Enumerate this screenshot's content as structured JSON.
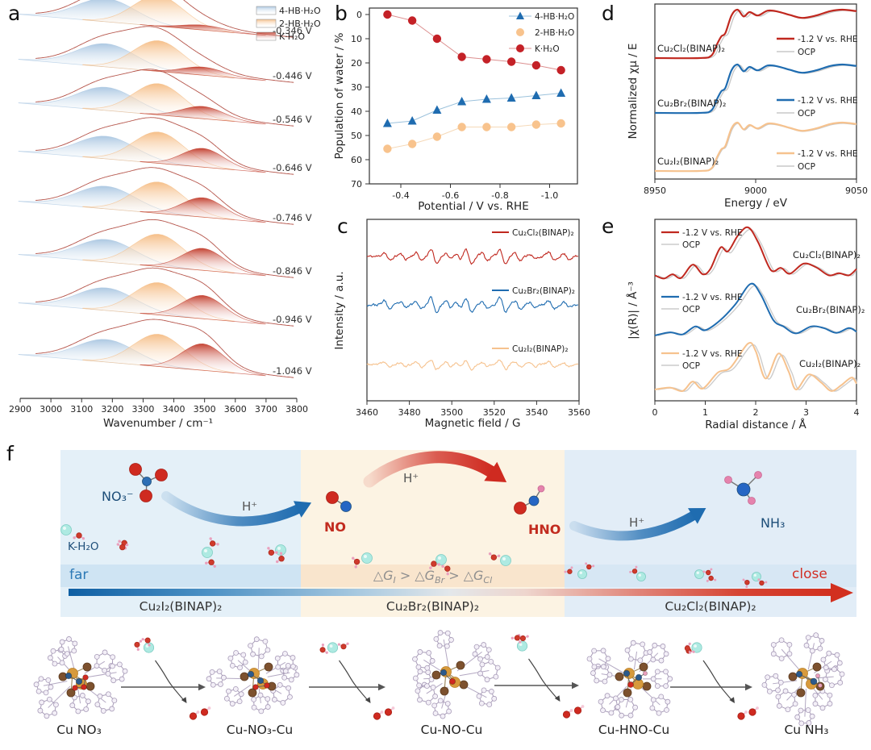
{
  "panels": {
    "a": "a",
    "b": "b",
    "c": "c",
    "d": "d",
    "e": "e",
    "f": "f"
  },
  "chart_data": [
    {
      "id": "a",
      "type": "area",
      "title": "",
      "xlabel": "Wavenumber / cm⁻¹",
      "x_ticks": [
        2900,
        3000,
        3100,
        3200,
        3300,
        3400,
        3500,
        3600,
        3700,
        3800
      ],
      "legend": [
        {
          "label": "4-HB·H₂O",
          "color": "#a9c6e1"
        },
        {
          "label": "2-HB·H₂O",
          "color": "#f5bc83"
        },
        {
          "label": "K·H₂O",
          "color": "#c23b2a"
        }
      ],
      "peak_centers": [
        3180,
        3350,
        3495
      ],
      "peak_sigmas": [
        95,
        82,
        68
      ],
      "rows": [
        {
          "potential": "-0.346 V",
          "amps": [
            0.72,
            0.95,
            0.15
          ]
        },
        {
          "potential": "-0.446 V",
          "amps": [
            0.72,
            0.95,
            0.25
          ]
        },
        {
          "potential": "-0.546 V",
          "amps": [
            0.72,
            0.97,
            0.38
          ]
        },
        {
          "potential": "-0.646 V",
          "amps": [
            0.7,
            0.97,
            0.58
          ]
        },
        {
          "potential": "-0.746 V",
          "amps": [
            0.7,
            0.97,
            0.6
          ]
        },
        {
          "potential": "-0.846 V",
          "amps": [
            0.7,
            1.0,
            0.68
          ]
        },
        {
          "potential": "-0.946 V",
          "amps": [
            0.7,
            1.0,
            0.72
          ]
        },
        {
          "potential": "-1.046 V",
          "amps": [
            0.7,
            1.0,
            0.82
          ]
        }
      ]
    },
    {
      "id": "b",
      "type": "scatter-line",
      "xlabel": "Potential / V vs. RHE",
      "ylabel": "Population of water / %",
      "x": [
        -0.346,
        -0.446,
        -0.546,
        -0.646,
        -0.746,
        -0.846,
        -0.946,
        -1.046
      ],
      "x_ticks": [
        -0.4,
        -0.6,
        -0.8,
        -1.0
      ],
      "x_tick_labels": [
        "-0.4",
        "-0.6",
        "-0.8",
        "-1.0"
      ],
      "y_ticks": [
        0,
        10,
        20,
        30,
        40,
        50,
        60,
        70
      ],
      "ylim": [
        0,
        70
      ],
      "y_inverted": true,
      "legend_position": "top-right",
      "series": [
        {
          "name": "4-HB·H₂O",
          "marker": "triangle",
          "color": "#1f6cb0",
          "line_color": "#9cc2dc",
          "legend_line": true,
          "values": [
            45,
            44,
            39.5,
            36,
            35,
            34.5,
            33.5,
            32.5
          ]
        },
        {
          "name": "2-HB·H₂O",
          "marker": "circle",
          "color": "#f8c38d",
          "line_color": "#f5d9b8",
          "legend_line": false,
          "values": [
            55.5,
            53.5,
            50.5,
            46.5,
            46.5,
            46.5,
            45.5,
            45
          ]
        },
        {
          "name": "K·H₂O",
          "marker": "circle",
          "color": "#c42127",
          "line_color": "#dc9090",
          "legend_line": true,
          "values": [
            0,
            2.5,
            10,
            17.5,
            18.5,
            19.5,
            21,
            23
          ]
        }
      ]
    },
    {
      "id": "c",
      "type": "line",
      "xlabel": "Magnetic field / G",
      "ylabel": "Intensity / a.u.",
      "x_ticks": [
        3460,
        3480,
        3500,
        3520,
        3540,
        3560
      ],
      "x_range": [
        3460,
        3560
      ],
      "traces": [
        {
          "name": "Cu₂Cl₂(BINAP)₂",
          "color": "#c0281f",
          "seed": 11,
          "spike_scale": 1.0
        },
        {
          "name": "Cu₂Br₂(BINAP)₂",
          "color": "#1f6cb0",
          "seed": 23,
          "spike_scale": 1.0
        },
        {
          "name": "Cu₂I₂(BINAP)₂",
          "color": "#f6c28e",
          "seed": 37,
          "spike_scale": 0.8
        }
      ],
      "hyperfine_peaks": [
        {
          "x": 3469.5,
          "a": 0.55
        },
        {
          "x": 3477,
          "a": 0.35
        },
        {
          "x": 3484.5,
          "a": 0.5
        },
        {
          "x": 3491.5,
          "a": 1.0
        },
        {
          "x": 3498.5,
          "a": 0.45
        },
        {
          "x": 3503,
          "a": 0.4
        },
        {
          "x": 3508,
          "a": 1.0
        },
        {
          "x": 3515.5,
          "a": 0.5
        },
        {
          "x": 3524,
          "a": 1.0
        },
        {
          "x": 3531,
          "a": 0.55
        },
        {
          "x": 3538,
          "a": 0.35
        },
        {
          "x": 3547,
          "a": 0.6
        },
        {
          "x": 3554,
          "a": 0.35
        }
      ]
    },
    {
      "id": "d",
      "type": "line",
      "xlabel": "Energy / eV",
      "ylabel": "Normalized χμ / E",
      "x_ticks": [
        8950,
        9000,
        9050
      ],
      "x_range": [
        8950,
        9050
      ],
      "legend": [
        "-1.2 V vs. RHE",
        "OCP"
      ],
      "ocp_color": "#c9c9c9",
      "groups": [
        {
          "name": "Cu₂Cl₂(BINAP)₂",
          "color": "#c0281f",
          "ocp_shift": 1.4
        },
        {
          "name": "Cu₂Br₂(BINAP)₂",
          "color": "#1f6cb0",
          "ocp_shift": 1.2
        },
        {
          "name": "Cu₂I₂(BINAP)₂",
          "color": "#f6c28e",
          "ocp_shift": 0.4
        }
      ],
      "xanes_curve": [
        [
          8950,
          0.0
        ],
        [
          8972,
          0.0
        ],
        [
          8978,
          0.05
        ],
        [
          8981,
          0.3
        ],
        [
          8983,
          0.45
        ],
        [
          8985,
          0.52
        ],
        [
          8988,
          0.88
        ],
        [
          8991,
          1.0
        ],
        [
          8994,
          0.86
        ],
        [
          8997,
          0.95
        ],
        [
          9001,
          0.88
        ],
        [
          9006,
          0.98
        ],
        [
          9011,
          0.96
        ],
        [
          9017,
          0.89
        ],
        [
          9023,
          0.83
        ],
        [
          9030,
          0.88
        ],
        [
          9037,
          0.97
        ],
        [
          9043,
          1.0
        ],
        [
          9050,
          0.97
        ]
      ]
    },
    {
      "id": "e",
      "type": "line",
      "xlabel": "Radial distance / Å",
      "ylabel": "|χ(R)| / Å⁻³",
      "x_ticks": [
        0,
        1,
        2,
        3,
        4
      ],
      "x_range": [
        0,
        4
      ],
      "legend": [
        "-1.2 V vs. RHE",
        "OCP"
      ],
      "ocp_color": "#cccccc",
      "groups": [
        {
          "name": "Cu₂Cl₂(BINAP)₂",
          "color": "#c0281f",
          "curve": [
            [
              0,
              0.1
            ],
            [
              0.18,
              0.04
            ],
            [
              0.35,
              0.12
            ],
            [
              0.52,
              0.05
            ],
            [
              0.75,
              0.3
            ],
            [
              0.95,
              0.12
            ],
            [
              1.1,
              0.22
            ],
            [
              1.3,
              0.62
            ],
            [
              1.45,
              0.55
            ],
            [
              1.65,
              0.85
            ],
            [
              1.85,
              1.0
            ],
            [
              2.05,
              0.72
            ],
            [
              2.3,
              0.2
            ],
            [
              2.5,
              0.24
            ],
            [
              2.68,
              0.13
            ],
            [
              2.95,
              0.32
            ],
            [
              3.2,
              0.25
            ],
            [
              3.45,
              0.1
            ],
            [
              3.65,
              0.14
            ],
            [
              3.85,
              0.1
            ],
            [
              4,
              0.22
            ]
          ]
        },
        {
          "name": "Cu₂Br₂(BINAP)₂",
          "color": "#1f6cb0",
          "curve": [
            [
              0,
              0.03
            ],
            [
              0.3,
              0.09
            ],
            [
              0.55,
              0.05
            ],
            [
              0.8,
              0.2
            ],
            [
              1.0,
              0.13
            ],
            [
              1.3,
              0.32
            ],
            [
              1.6,
              0.62
            ],
            [
              1.9,
              1.0
            ],
            [
              2.1,
              0.8
            ],
            [
              2.35,
              0.32
            ],
            [
              2.55,
              0.2
            ],
            [
              2.8,
              0.07
            ],
            [
              3.1,
              0.2
            ],
            [
              3.35,
              0.17
            ],
            [
              3.6,
              0.08
            ],
            [
              3.85,
              0.17
            ],
            [
              4,
              0.1
            ]
          ]
        },
        {
          "name": "Cu₂I₂(BINAP)₂",
          "color": "#f6c28e",
          "curve": [
            [
              0,
              0.08
            ],
            [
              0.3,
              0.12
            ],
            [
              0.55,
              0.05
            ],
            [
              0.75,
              0.24
            ],
            [
              0.95,
              0.1
            ],
            [
              1.25,
              0.42
            ],
            [
              1.5,
              0.52
            ],
            [
              1.85,
              1.0
            ],
            [
              2.0,
              0.85
            ],
            [
              2.2,
              0.3
            ],
            [
              2.45,
              0.8
            ],
            [
              2.65,
              0.45
            ],
            [
              2.8,
              0.08
            ],
            [
              3.05,
              0.38
            ],
            [
              3.3,
              0.22
            ],
            [
              3.5,
              0.05
            ],
            [
              3.7,
              0.17
            ],
            [
              3.9,
              0.32
            ],
            [
              4,
              0.2
            ]
          ]
        }
      ]
    }
  ],
  "scheme": {
    "species": {
      "no3": "NO₃⁻",
      "no": "NO",
      "hno": "HNO",
      "nh3": "NH₃"
    },
    "h_plus": "H⁺",
    "k_h2o": "K-H₂O",
    "far": "far",
    "close": "close",
    "dg": {
      "t1": "△G",
      "s1": "I",
      "t2": " > △G",
      "s2": "Br",
      "t3": " > △G",
      "s3": "Cl"
    },
    "catalysts": [
      "Cu₂I₂(BINAP)₂",
      "Cu₂Br₂(BINAP)₂",
      "Cu₂Cl₂(BINAP)₂"
    ],
    "steps": [
      "Cu NO₃",
      "Cu-NO₃-Cu",
      "Cu-NO-Cu",
      "Cu-HNO-Cu",
      "Cu NH₃"
    ],
    "region_colors": {
      "left_bg": "#e4f0f8",
      "mid_bg": "#fcf3e3",
      "right_bg": "#e2edf7",
      "left_strip": "#cfe4f3",
      "mid_strip": "#f9e5cd",
      "right_strip": "#d7e7f4"
    },
    "arrow_colors": {
      "blue": "#1f6cb0",
      "red": "#cf2a20"
    },
    "atom_colors": {
      "Cu": "#d79a3c",
      "P": "#7d512e",
      "C": "#f3eff7",
      "C_stroke": "#a89cb8",
      "N": "#2b5a8c",
      "O": "#cf2a20",
      "H": "#eaa0bd",
      "K": "#aeeae2"
    }
  }
}
